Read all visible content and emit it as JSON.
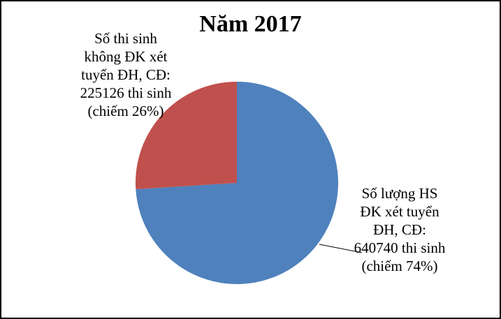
{
  "chart_data": {
    "type": "pie",
    "title": "Năm 2017",
    "slices": [
      {
        "label_lines": [
          "Số lượng HS",
          "ĐK xét tuyển",
          "ĐH, CĐ:",
          "640740  thi sinh",
          "(chiếm 74%)"
        ],
        "value": 640740,
        "percent": 74,
        "color": "#4F81BD"
      },
      {
        "label_lines": [
          "Số thi sinh",
          "không ĐK xét",
          "tuyển ĐH, CĐ:",
          "225126  thi sinh",
          "(chiếm 26%)"
        ],
        "value": 225126,
        "percent": 26,
        "color": "#C0504D"
      }
    ]
  }
}
